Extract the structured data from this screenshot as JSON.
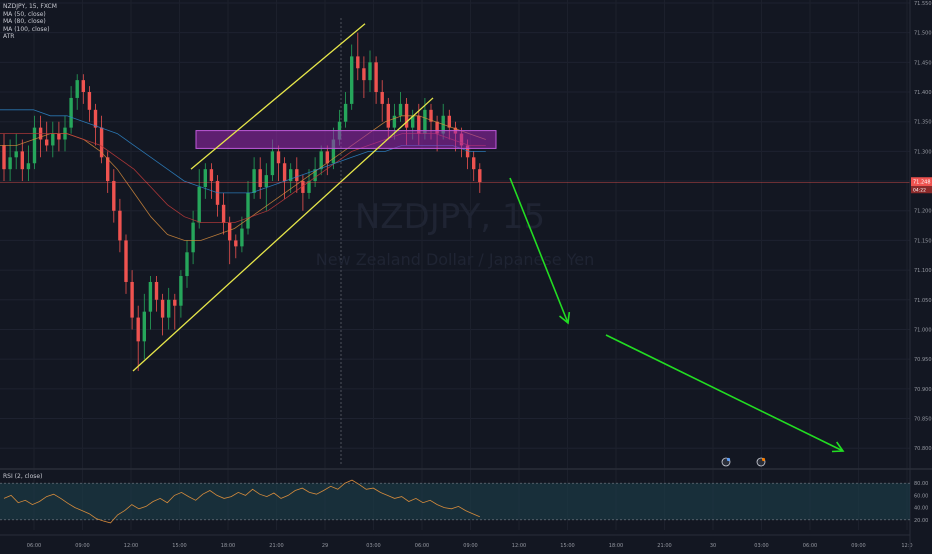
{
  "header": {
    "symbol_line": "NZDJPY, 15, FXCM",
    "indicators": [
      "MA (50, close)",
      "MA (80, close)",
      "MA (100, close)",
      "ATR"
    ],
    "rsi_label": "RSI (2, close)"
  },
  "watermark": {
    "symbol": "NZDJPY, 15",
    "name": "New Zealand Dollar / Japanese Yen"
  },
  "colors": {
    "background": "#131722",
    "up": "#26a65b",
    "down": "#ef5350",
    "trendline": "#e6e64a",
    "zone": "#9c27b0",
    "arrow": "#22dd22",
    "ma50": "#d28a3c",
    "ma80": "#c23b3b",
    "ma100": "#2f86c9",
    "rsi": "#d58b3c"
  },
  "chart_data": {
    "type": "candlestick",
    "y_axis": {
      "ticks": [
        "71.550",
        "71.500",
        "71.450",
        "71.400",
        "71.350",
        "71.300",
        "71.250",
        "71.200",
        "71.150",
        "71.100",
        "71.050",
        "71.000",
        "70.950",
        "70.900",
        "70.850",
        "70.800"
      ],
      "ylim": [
        70.77,
        71.555
      ]
    },
    "x_axis": {
      "ticks": [
        "06:00",
        "09:00",
        "12:00",
        "15:00",
        "18:00",
        "21:00",
        "29",
        "03:00",
        "06:00",
        "09:00",
        "12:00",
        "15:00",
        "18:00",
        "21:00",
        "30",
        "03:00",
        "06:00",
        "09:00",
        "12:0"
      ]
    },
    "current_price": {
      "value": 71.248,
      "label": "71.248",
      "countdown": "04:22"
    },
    "candles": [
      [
        71.31,
        71.27,
        71.33,
        71.25
      ],
      [
        71.27,
        71.29,
        71.32,
        71.25
      ],
      [
        71.29,
        71.3,
        71.33,
        71.27
      ],
      [
        71.3,
        71.27,
        71.32,
        71.25
      ],
      [
        71.27,
        71.28,
        71.31,
        71.25
      ],
      [
        71.28,
        71.34,
        71.36,
        71.27
      ],
      [
        71.34,
        71.32,
        71.36,
        71.29
      ],
      [
        71.32,
        71.31,
        71.35,
        71.3
      ],
      [
        71.31,
        71.33,
        71.35,
        71.29
      ],
      [
        71.33,
        71.32,
        71.35,
        71.3
      ],
      [
        71.32,
        71.34,
        71.36,
        71.3
      ],
      [
        71.34,
        71.39,
        71.41,
        71.33
      ],
      [
        71.39,
        71.42,
        71.43,
        71.37
      ],
      [
        71.42,
        71.4,
        71.43,
        71.38
      ],
      [
        71.4,
        71.37,
        71.41,
        71.35
      ],
      [
        71.37,
        71.34,
        71.38,
        71.31
      ],
      [
        71.34,
        71.29,
        71.36,
        71.28
      ],
      [
        71.29,
        71.25,
        71.3,
        71.23
      ],
      [
        71.25,
        71.2,
        71.27,
        71.18
      ],
      [
        71.2,
        71.15,
        71.22,
        71.13
      ],
      [
        71.15,
        71.08,
        71.16,
        71.06
      ],
      [
        71.08,
        71.02,
        71.1,
        71.0
      ],
      [
        71.02,
        70.98,
        71.04,
        70.93
      ],
      [
        70.98,
        71.03,
        71.06,
        70.95
      ],
      [
        71.03,
        71.08,
        71.09,
        71.0
      ],
      [
        71.08,
        71.05,
        71.09,
        71.03
      ],
      [
        71.05,
        71.02,
        71.06,
        70.99
      ],
      [
        71.02,
        71.05,
        71.07,
        71.0
      ],
      [
        71.05,
        71.04,
        71.06,
        71.0
      ],
      [
        71.04,
        71.09,
        71.1,
        71.02
      ],
      [
        71.09,
        71.13,
        71.15,
        71.07
      ],
      [
        71.13,
        71.18,
        71.2,
        71.11
      ],
      [
        71.18,
        71.24,
        71.27,
        71.17
      ],
      [
        71.24,
        71.27,
        71.28,
        71.22
      ],
      [
        71.27,
        71.25,
        71.28,
        71.22
      ],
      [
        71.25,
        71.21,
        71.26,
        71.19
      ],
      [
        71.21,
        71.18,
        71.23,
        71.16
      ],
      [
        71.18,
        71.15,
        71.19,
        71.11
      ],
      [
        71.15,
        71.14,
        71.16,
        71.12
      ],
      [
        71.14,
        71.17,
        71.19,
        71.13
      ],
      [
        71.17,
        71.23,
        71.25,
        71.16
      ],
      [
        71.23,
        71.27,
        71.29,
        71.22
      ],
      [
        71.27,
        71.24,
        71.29,
        71.22
      ],
      [
        71.24,
        71.26,
        71.28,
        71.2
      ],
      [
        71.26,
        71.3,
        71.32,
        71.25
      ],
      [
        71.3,
        71.28,
        71.31,
        71.25
      ],
      [
        71.28,
        71.25,
        71.29,
        71.22
      ],
      [
        71.25,
        71.27,
        71.28,
        71.23
      ],
      [
        71.27,
        71.25,
        71.29,
        71.23
      ],
      [
        71.25,
        71.23,
        71.26,
        71.2
      ],
      [
        71.23,
        71.25,
        71.27,
        71.22
      ],
      [
        71.25,
        71.27,
        71.29,
        71.24
      ],
      [
        71.27,
        71.3,
        71.31,
        71.26
      ],
      [
        71.3,
        71.28,
        71.31,
        71.26
      ],
      [
        71.28,
        71.32,
        71.34,
        71.27
      ],
      [
        71.32,
        71.35,
        71.37,
        71.31
      ],
      [
        71.35,
        71.38,
        71.4,
        71.34
      ],
      [
        71.38,
        71.46,
        71.48,
        71.37
      ],
      [
        71.46,
        71.44,
        71.5,
        71.42
      ],
      [
        71.44,
        71.42,
        71.46,
        71.39
      ],
      [
        71.42,
        71.45,
        71.47,
        71.4
      ],
      [
        71.45,
        71.4,
        71.46,
        71.38
      ],
      [
        71.4,
        71.38,
        71.42,
        71.35
      ],
      [
        71.38,
        71.34,
        71.39,
        71.32
      ],
      [
        71.34,
        71.36,
        71.38,
        71.32
      ],
      [
        71.36,
        71.38,
        71.4,
        71.35
      ],
      [
        71.38,
        71.34,
        71.39,
        71.31
      ],
      [
        71.34,
        71.36,
        71.37,
        71.32
      ],
      [
        71.36,
        71.33,
        71.38,
        71.31
      ],
      [
        71.33,
        71.37,
        71.39,
        71.32
      ],
      [
        71.37,
        71.35,
        71.38,
        71.32
      ],
      [
        71.35,
        71.33,
        71.36,
        71.3
      ],
      [
        71.33,
        71.36,
        71.38,
        71.32
      ],
      [
        71.36,
        71.34,
        71.37,
        71.32
      ],
      [
        71.34,
        71.33,
        71.35,
        71.3
      ],
      [
        71.33,
        71.31,
        71.34,
        71.29
      ],
      [
        71.31,
        71.29,
        71.32,
        71.27
      ],
      [
        71.29,
        71.27,
        71.3,
        71.25
      ],
      [
        71.27,
        71.248,
        71.28,
        71.23
      ]
    ],
    "series": [
      {
        "name": "MA (50, close)",
        "values": [
          71.31,
          71.31,
          71.32,
          71.33,
          71.33,
          71.32,
          71.3,
          71.27,
          71.23,
          71.19,
          71.16,
          71.15,
          71.15,
          71.16,
          71.17,
          71.19,
          71.21,
          71.23,
          71.25,
          71.27,
          71.29,
          71.31,
          71.33,
          71.35,
          71.36,
          71.36,
          71.35,
          71.34,
          71.33,
          71.32
        ]
      },
      {
        "name": "MA (80, close)",
        "values": [
          71.33,
          71.33,
          71.33,
          71.33,
          71.33,
          71.32,
          71.31,
          71.29,
          71.27,
          71.24,
          71.21,
          71.19,
          71.18,
          71.18,
          71.18,
          71.19,
          71.2,
          71.22,
          71.24,
          71.26,
          71.28,
          71.3,
          71.31,
          71.32,
          71.33,
          71.33,
          71.33,
          71.32,
          71.31,
          71.31
        ]
      },
      {
        "name": "MA (100, close)",
        "values": [
          71.37,
          71.37,
          71.37,
          71.36,
          71.36,
          71.35,
          71.34,
          71.33,
          71.31,
          71.29,
          71.27,
          71.25,
          71.24,
          71.23,
          71.23,
          71.23,
          71.24,
          71.25,
          71.26,
          71.27,
          71.28,
          71.29,
          71.3,
          71.3,
          71.31,
          71.31,
          71.31,
          71.31,
          71.3,
          71.3
        ]
      }
    ],
    "rsi": {
      "levels": [
        "80.00",
        "60.00",
        "40.00",
        "20.00"
      ],
      "ylim": [
        0,
        100
      ],
      "values": [
        55,
        60,
        48,
        52,
        45,
        50,
        58,
        62,
        55,
        47,
        40,
        35,
        30,
        22,
        18,
        15,
        28,
        35,
        45,
        38,
        42,
        50,
        55,
        48,
        60,
        65,
        58,
        52,
        62,
        68,
        60,
        55,
        58,
        65,
        60,
        70,
        62,
        58,
        64,
        55,
        60,
        68,
        72,
        65,
        62,
        68,
        75,
        70,
        80,
        85,
        78,
        70,
        72,
        65,
        60,
        55,
        58,
        50,
        55,
        48,
        52,
        45,
        40,
        38,
        42,
        35,
        30,
        25
      ]
    },
    "drawings": {
      "resistance_zone": [
        71.305,
        71.335
      ],
      "trendline_lower": [
        [
          -50,
          70.93
        ],
        [
          30,
          71.29
        ]
      ],
      "trendline_upper": [
        [
          -40,
          71.27
        ],
        [
          18,
          71.515
        ]
      ],
      "trendline_break": [
        [
          30,
          71.29
        ],
        [
          68,
          71.39
        ]
      ]
    }
  }
}
